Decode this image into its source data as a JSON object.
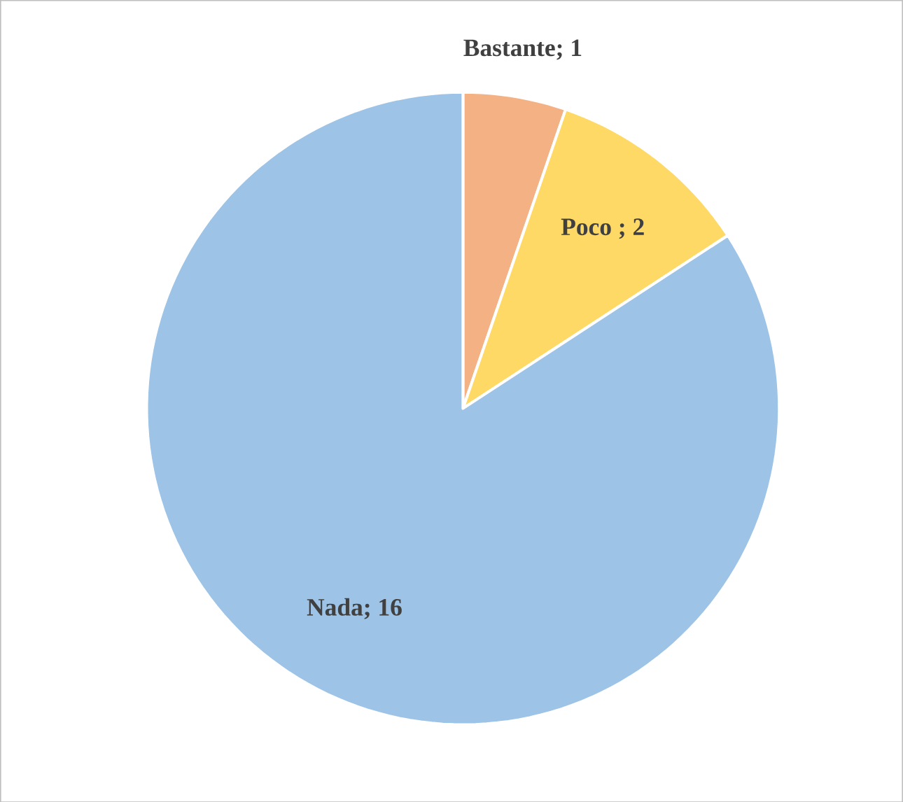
{
  "chart_data": {
    "type": "pie",
    "categories": [
      "Bastante; 1",
      "Poco ; 2",
      "Nada; 16"
    ],
    "values": [
      1,
      2,
      16
    ],
    "colors": [
      "#f4b183",
      "#ffd966",
      "#9dc3e6"
    ]
  }
}
